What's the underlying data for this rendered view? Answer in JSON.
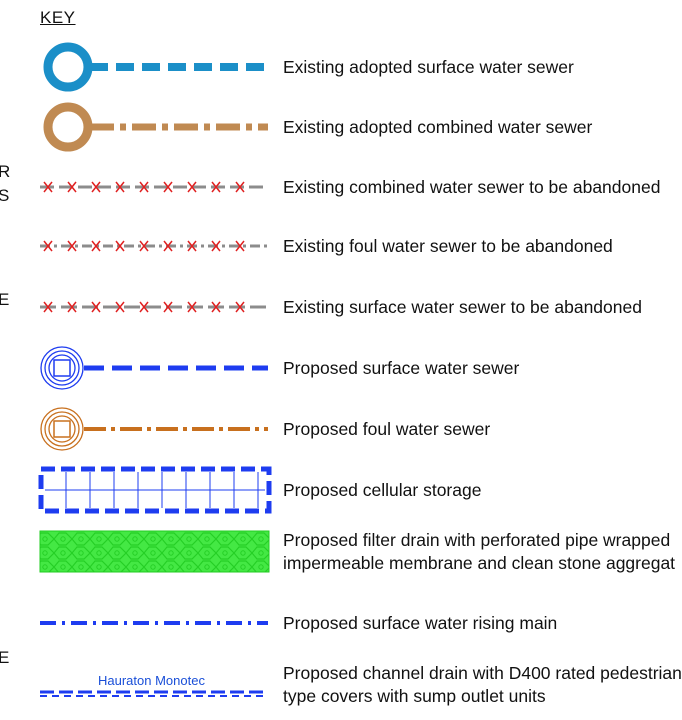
{
  "key_title": "KEY",
  "edge_fragments": [
    "R",
    "S",
    "E",
    "E"
  ],
  "colors": {
    "adopted_surface": "#1b8fc8",
    "adopted_combined": "#c08a52",
    "abandon_line": "#8c8c8c",
    "abandon_cross": "#e02020",
    "proposed_blue": "#1e3cf0",
    "proposed_foul": "#c8701e",
    "filter_green": "#22dd22"
  },
  "legend": [
    {
      "label": "Existing adopted surface water sewer"
    },
    {
      "label": "Existing adopted combined water sewer"
    },
    {
      "label": "Existing combined water sewer to be abandoned"
    },
    {
      "label": "Existing foul water sewer to be abandoned"
    },
    {
      "label": "Existing surface water sewer to be abandoned"
    },
    {
      "label": "Proposed surface water sewer"
    },
    {
      "label": "Proposed foul water sewer"
    },
    {
      "label": "Proposed cellular storage"
    },
    {
      "label": "Proposed filter drain with perforated pipe wrapped",
      "label2": "impermeable membrane and clean stone aggregat"
    },
    {
      "label": "Proposed surface water rising main"
    },
    {
      "label": "Proposed channel drain with D400 rated pedestrian",
      "label2": "type covers with sump outlet units",
      "symbol_text": "Hauraton Monotec"
    }
  ]
}
